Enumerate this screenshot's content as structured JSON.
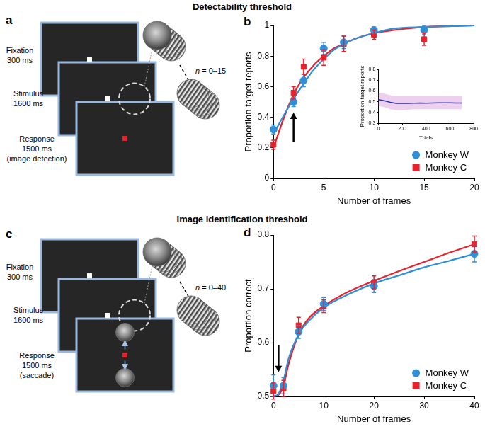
{
  "figure": {
    "headings": [
      "Detectability threshold",
      "Image identification threshold"
    ],
    "panel_labels": [
      "a",
      "b",
      "c",
      "d"
    ],
    "diagrams": [
      {
        "steps": [
          [
            "Fixation",
            "300 ms"
          ],
          [
            "Stimulus",
            "1600 ms"
          ],
          [
            "Response",
            "1500 ms",
            "(image detection)"
          ]
        ],
        "frames": "n = 0–15"
      },
      {
        "steps": [
          [
            "Fixation",
            "300 ms"
          ],
          [
            "Stimulus",
            "1600 ms"
          ],
          [
            "Response",
            "1500 ms",
            "(saccade)"
          ]
        ],
        "frames": "n = 0–40"
      }
    ]
  },
  "chart_data": [
    {
      "type": "scatter",
      "x_label": "Number of frames",
      "y_label": "Proportion target reports",
      "xlim": [
        0,
        20
      ],
      "xticks": [
        0,
        5,
        10,
        15,
        20
      ],
      "ylim": [
        0,
        1
      ],
      "yticks": [
        0,
        0.2,
        0.4,
        0.6,
        0.8,
        1
      ],
      "grid": false,
      "legend": "lower right",
      "series": [
        {
          "name": "Monkey W",
          "color": "#2f8fd8",
          "marker": "circle",
          "x": [
            0,
            2,
            3,
            5,
            7,
            10,
            15
          ],
          "values": [
            0.32,
            0.5,
            0.64,
            0.85,
            0.89,
            0.97,
            0.97
          ],
          "errors": [
            0.03,
            0.03,
            0.04,
            0.04,
            0.04,
            0.02,
            0.03
          ],
          "fit": {
            "x": [
              0,
              1,
              2,
              3,
              4,
              5,
              6,
              7,
              8,
              10,
              12,
              15,
              20
            ],
            "values": [
              0.29,
              0.41,
              0.52,
              0.62,
              0.71,
              0.78,
              0.84,
              0.88,
              0.91,
              0.95,
              0.98,
              0.99,
              1.0
            ]
          }
        },
        {
          "name": "Monkey C",
          "color": "#e8212b",
          "marker": "square",
          "x": [
            0,
            2,
            3,
            5,
            7,
            10,
            15
          ],
          "values": [
            0.22,
            0.56,
            0.73,
            0.79,
            0.88,
            0.94,
            0.91
          ],
          "errors": [
            0.03,
            0.04,
            0.05,
            0.05,
            0.05,
            0.03,
            0.04
          ],
          "fit": {
            "x": [
              0,
              1,
              2,
              3,
              4,
              5,
              6,
              7,
              8,
              10,
              12,
              15,
              20
            ],
            "values": [
              0.2,
              0.39,
              0.55,
              0.66,
              0.74,
              0.8,
              0.85,
              0.88,
              0.91,
              0.95,
              0.97,
              0.99,
              1.0
            ]
          }
        }
      ],
      "arrow": {
        "x": 2,
        "from": 0.24,
        "to": 0.43
      }
    },
    {
      "type": "line",
      "x_label": "Trials",
      "y_label": "Proportion target reports",
      "xlim": [
        0,
        800
      ],
      "xticks": [
        0,
        200,
        400,
        600,
        800
      ],
      "ylim": [
        0.3,
        0.8
      ],
      "yticks": [
        0.3,
        0.4,
        0.5,
        0.6,
        0.7,
        0.8
      ],
      "grid": false,
      "series": [
        {
          "color": "#2e2eb8",
          "x": [
            0,
            50,
            100,
            150,
            200,
            250,
            300,
            350,
            400,
            450,
            500,
            550,
            600,
            650,
            700
          ],
          "values": [
            0.52,
            0.51,
            0.495,
            0.485,
            0.485,
            0.485,
            0.487,
            0.488,
            0.487,
            0.488,
            0.49,
            0.49,
            0.49,
            0.488,
            0.488
          ],
          "band_lower": [
            0.46,
            0.45,
            0.43,
            0.42,
            0.42,
            0.425,
            0.43,
            0.43,
            0.43,
            0.43,
            0.43,
            0.43,
            0.43,
            0.43,
            0.43
          ],
          "band_upper": [
            0.58,
            0.575,
            0.56,
            0.55,
            0.55,
            0.55,
            0.55,
            0.55,
            0.55,
            0.55,
            0.55,
            0.55,
            0.55,
            0.55,
            0.55
          ]
        }
      ]
    },
    {
      "type": "scatter",
      "x_label": "Number of frames",
      "y_label": "Proportion correct",
      "xlim": [
        0,
        40
      ],
      "xticks": [
        0,
        10,
        20,
        30,
        40
      ],
      "ylim": [
        0.5,
        0.8
      ],
      "yticks": [
        0.5,
        0.6,
        0.7,
        0.8
      ],
      "grid": false,
      "legend": "lower right",
      "series": [
        {
          "name": "Monkey W",
          "color": "#2f8fd8",
          "marker": "circle",
          "x": [
            0,
            2,
            5,
            10,
            20,
            40
          ],
          "values": [
            0.52,
            0.52,
            0.62,
            0.672,
            0.705,
            0.765
          ],
          "errors": [
            0.02,
            0.015,
            0.012,
            0.012,
            0.012,
            0.015
          ],
          "fit": {
            "x": [
              0,
              1,
              2,
              3,
              5,
              7,
              10,
              15,
              20,
              25,
              30,
              35,
              40
            ],
            "values": [
              0.5,
              0.505,
              0.53,
              0.57,
              0.615,
              0.64,
              0.665,
              0.69,
              0.71,
              0.725,
              0.74,
              0.752,
              0.765
            ]
          }
        },
        {
          "name": "Monkey C",
          "color": "#e8212b",
          "marker": "square",
          "x": [
            0,
            2,
            5,
            10,
            20,
            40
          ],
          "values": [
            0.51,
            0.515,
            0.632,
            0.668,
            0.712,
            0.783
          ],
          "errors": [
            0.015,
            0.015,
            0.015,
            0.012,
            0.012,
            0.015
          ],
          "fit": {
            "x": [
              0,
              1,
              2,
              3,
              5,
              7,
              10,
              15,
              20,
              25,
              30,
              35,
              40
            ],
            "values": [
              0.5,
              0.503,
              0.52,
              0.56,
              0.615,
              0.645,
              0.668,
              0.695,
              0.715,
              0.733,
              0.75,
              0.767,
              0.783
            ]
          }
        }
      ],
      "arrow": {
        "x": 1,
        "from": 0.595,
        "to": 0.545
      }
    }
  ]
}
